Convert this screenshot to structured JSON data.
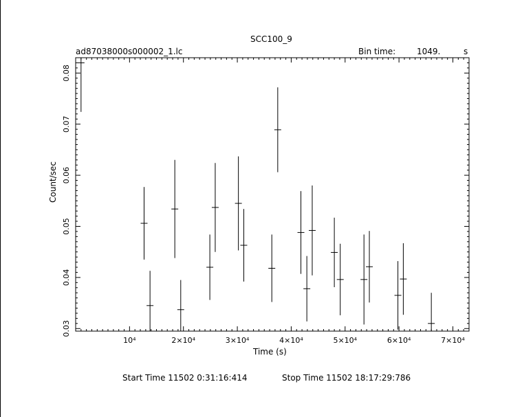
{
  "chart_data": {
    "type": "scatter",
    "title": "SCC100_9",
    "file_label": "ad87038000s000002_1.lc",
    "bin_time_label": "Bin time:",
    "bin_time_value": "1049.",
    "bin_time_unit": "s",
    "xlabel": "Time (s)",
    "ylabel": "Count/sec",
    "xlim": [
      0,
      73000
    ],
    "ylim": [
      0.0295,
      0.083
    ],
    "x_ticks": [
      {
        "value": 10000,
        "label": "10⁴"
      },
      {
        "value": 20000,
        "label": "2×10⁴"
      },
      {
        "value": 30000,
        "label": "3×10⁴"
      },
      {
        "value": 40000,
        "label": "4×10⁴"
      },
      {
        "value": 50000,
        "label": "5×10⁴"
      },
      {
        "value": 60000,
        "label": "6×10⁴"
      },
      {
        "value": 70000,
        "label": "7×10⁴"
      }
    ],
    "y_ticks": [
      {
        "value": 0.03,
        "label": "0.03"
      },
      {
        "value": 0.04,
        "label": "0.04"
      },
      {
        "value": 0.05,
        "label": "0.05"
      },
      {
        "value": 0.06,
        "label": "0.06"
      },
      {
        "value": 0.07,
        "label": "0.07"
      },
      {
        "value": 0.08,
        "label": "0.08"
      }
    ],
    "grid": false,
    "series": [
      {
        "points": [
          {
            "x": 1000,
            "y": 0.082,
            "err": 0.0096
          },
          {
            "x": 12700,
            "y": 0.0506,
            "err": 0.0071
          },
          {
            "x": 13800,
            "y": 0.0345,
            "err": 0.0068
          },
          {
            "x": 18400,
            "y": 0.0534,
            "err": 0.0096
          },
          {
            "x": 19500,
            "y": 0.0337,
            "err": 0.0058
          },
          {
            "x": 24900,
            "y": 0.042,
            "err": 0.0064
          },
          {
            "x": 25900,
            "y": 0.0537,
            "err": 0.0087
          },
          {
            "x": 30200,
            "y": 0.0545,
            "err": 0.0092
          },
          {
            "x": 31200,
            "y": 0.0463,
            "err": 0.0071
          },
          {
            "x": 36400,
            "y": 0.0418,
            "err": 0.0066
          },
          {
            "x": 37500,
            "y": 0.0689,
            "err": 0.0083
          },
          {
            "x": 41800,
            "y": 0.0488,
            "err": 0.0081
          },
          {
            "x": 42900,
            "y": 0.0378,
            "err": 0.0064
          },
          {
            "x": 43900,
            "y": 0.0492,
            "err": 0.0088
          },
          {
            "x": 48000,
            "y": 0.0449,
            "err": 0.0068
          },
          {
            "x": 49100,
            "y": 0.0396,
            "err": 0.007
          },
          {
            "x": 53500,
            "y": 0.0396,
            "err": 0.0088
          },
          {
            "x": 54500,
            "y": 0.0421,
            "err": 0.007
          },
          {
            "x": 59800,
            "y": 0.0365,
            "err": 0.0067
          },
          {
            "x": 60800,
            "y": 0.0397,
            "err": 0.007
          },
          {
            "x": 66000,
            "y": 0.031,
            "err": 0.006
          }
        ]
      }
    ],
    "start_time_text": "Start Time 11502  0:31:16:414",
    "stop_time_text": "Stop Time 11502 18:17:29:786"
  }
}
